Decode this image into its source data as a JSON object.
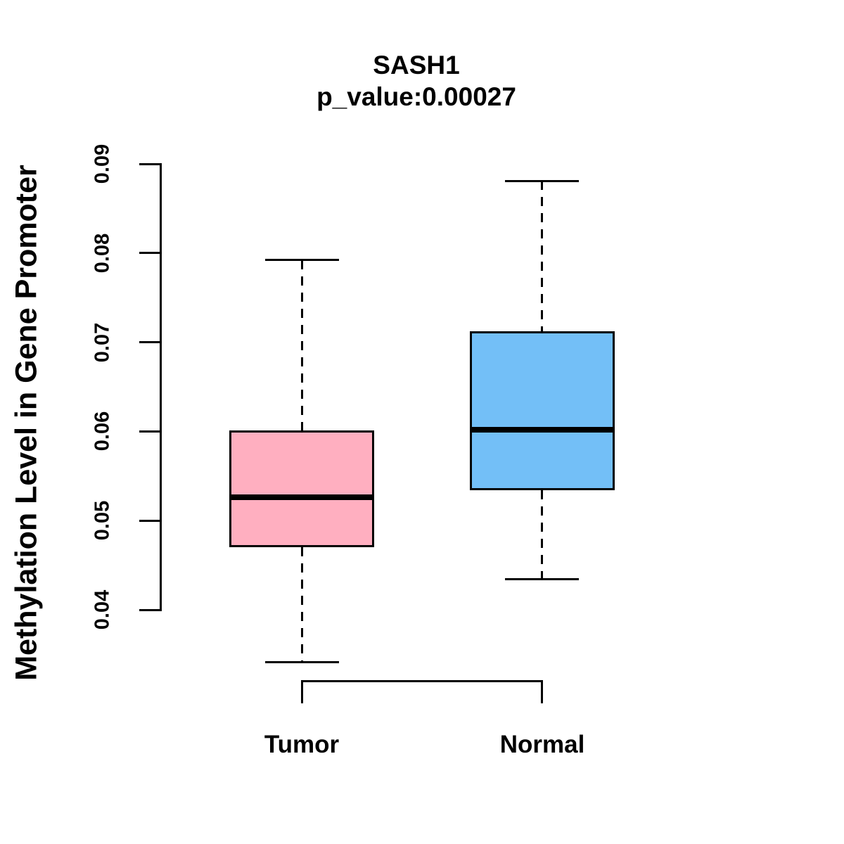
{
  "title": {
    "gene": "SASH1",
    "p_value_line": "p_value:0.00027"
  },
  "y_axis": {
    "label": "Methylation Level in Gene Promoter",
    "tick_labels": [
      "0.09",
      "0.08",
      "0.07",
      "0.06",
      "0.05",
      "0.04"
    ]
  },
  "x_axis": {
    "labels": [
      "Tumor",
      "Normal"
    ]
  },
  "chart_data": {
    "type": "boxplot",
    "title": "SASH1",
    "subtitle": "p_value:0.00027",
    "ylabel": "Methylation Level in Gene Promoter",
    "xlabel": "",
    "categories": [
      "Tumor",
      "Normal"
    ],
    "yticks": [
      0.09,
      0.08,
      0.07,
      0.06,
      0.05,
      0.04
    ],
    "ylim": [
      0.04,
      0.09
    ],
    "grid": false,
    "legend": "none",
    "series": [
      {
        "name": "Tumor",
        "fill_color": "#FFAFC0",
        "whisker_low": 0.0341,
        "q1": 0.047,
        "median": 0.0526,
        "q3": 0.0601,
        "whisker_high": 0.0792
      },
      {
        "name": "Normal",
        "fill_color": "#73BFF7",
        "whisker_low": 0.0434,
        "q1": 0.0534,
        "median": 0.0602,
        "q3": 0.0712,
        "whisker_high": 0.0881
      }
    ]
  },
  "colors": {
    "background": "#FFFFFF",
    "line": "#000000",
    "tumor_fill": "#FFAFC0",
    "normal_fill": "#73BFF7"
  }
}
